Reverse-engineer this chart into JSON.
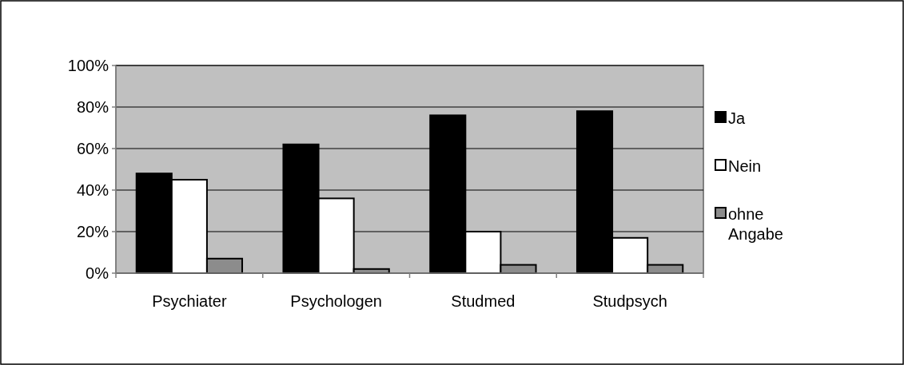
{
  "chart_data": {
    "type": "bar",
    "categories": [
      "Psychiater",
      "Psychologen",
      "Studmed",
      "Studpsych"
    ],
    "series": [
      {
        "name": "Ja",
        "color": "#000000",
        "values": [
          48,
          62,
          76,
          78
        ]
      },
      {
        "name": "Nein",
        "color": "#ffffff",
        "values": [
          45,
          36,
          20,
          17
        ]
      },
      {
        "name": "ohne Angabe",
        "color": "#8c8c8c",
        "values": [
          7,
          2,
          4,
          4
        ]
      }
    ],
    "ylim": [
      0,
      100
    ],
    "yticks": [
      {
        "value": 0,
        "label": "0%"
      },
      {
        "value": 20,
        "label": "20%"
      },
      {
        "value": 40,
        "label": "40%"
      },
      {
        "value": 60,
        "label": "60%"
      },
      {
        "value": 80,
        "label": "80%"
      },
      {
        "value": 100,
        "label": "100%"
      }
    ],
    "grid": "y",
    "legend": "right"
  }
}
